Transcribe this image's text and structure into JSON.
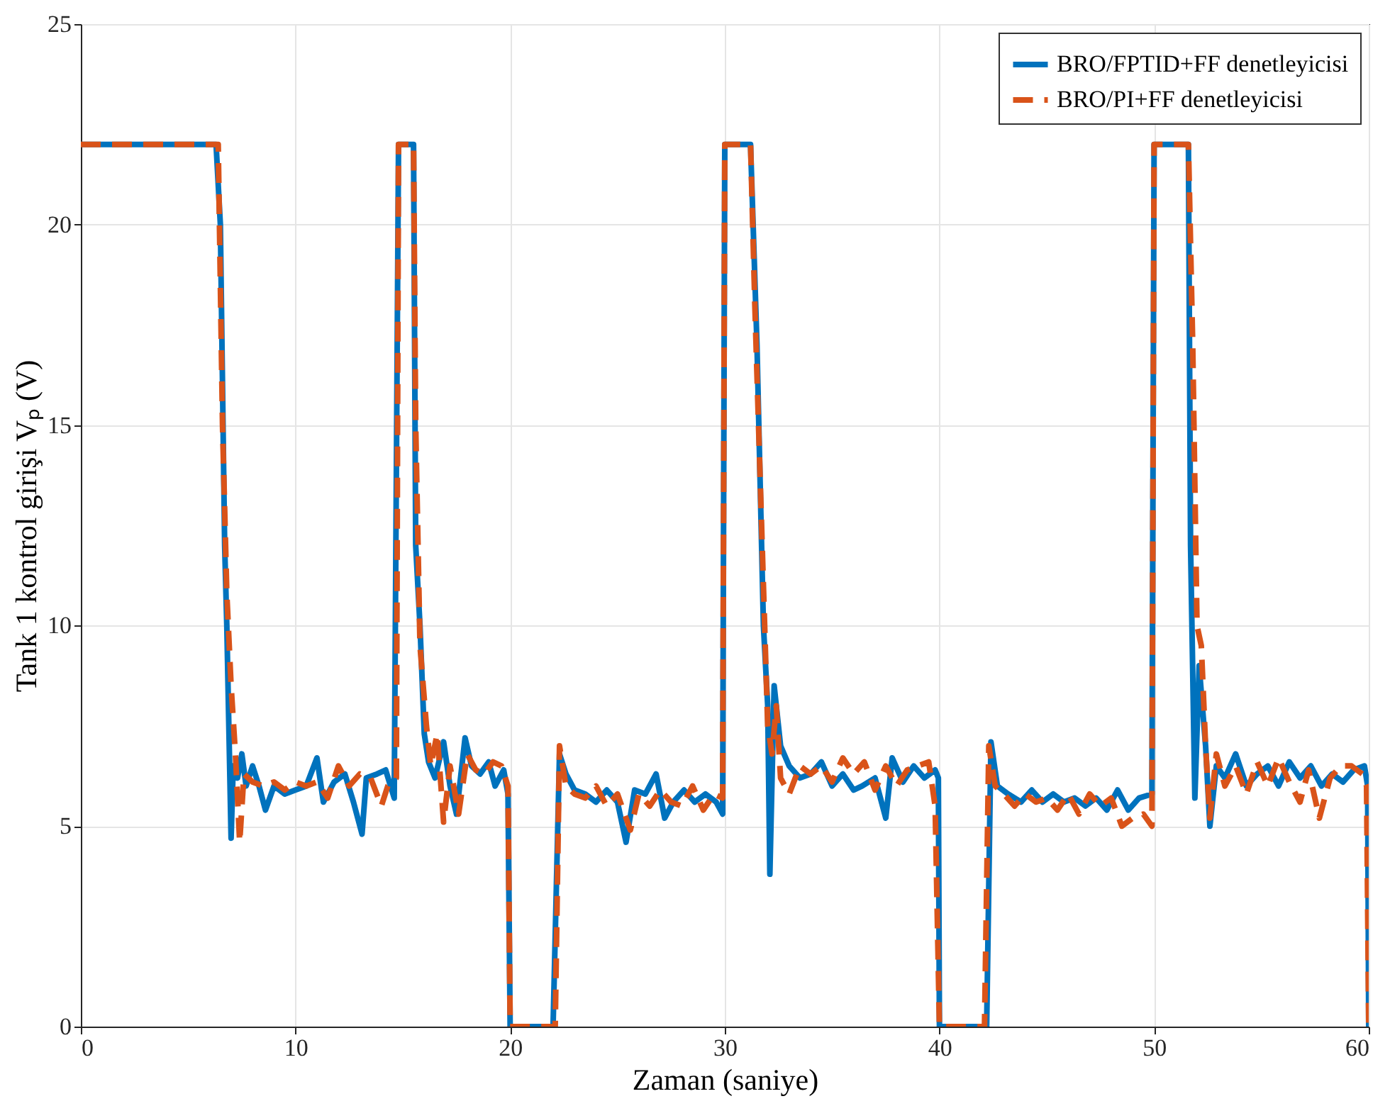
{
  "chart_data": {
    "type": "line",
    "xlabel": "Zaman (saniye)",
    "ylabel": "Tank 1 kontrol girişi Vₚ (V)",
    "xlim": [
      0,
      60
    ],
    "ylim": [
      0,
      25
    ],
    "xticks": [
      0,
      10,
      20,
      30,
      40,
      50,
      60
    ],
    "yticks": [
      0,
      5,
      10,
      15,
      20,
      25
    ],
    "grid": true,
    "legend": "top right",
    "series": [
      {
        "name": "BRO/FPTID+FF denetleyicisi",
        "color": "#0072bd",
        "line_style": "solid",
        "x": [
          0,
          6.3,
          6.5,
          6.7,
          6.8,
          7.0,
          7.1,
          7.3,
          7.5,
          7.7,
          8.0,
          8.3,
          8.6,
          9.0,
          9.5,
          10.0,
          10.5,
          11.0,
          11.3,
          11.8,
          12.3,
          12.7,
          13.1,
          13.3,
          13.8,
          14.2,
          14.6,
          14.8,
          15.5,
          15.6,
          15.8,
          16.0,
          16.2,
          16.5,
          16.9,
          17.2,
          17.5,
          17.9,
          18.2,
          18.6,
          19.0,
          19.3,
          19.7,
          19.9,
          20.0,
          22.0,
          22.3,
          22.6,
          23.0,
          23.5,
          24.0,
          24.5,
          25.0,
          25.4,
          25.8,
          26.3,
          26.8,
          27.2,
          27.6,
          28.1,
          28.6,
          29.1,
          29.6,
          29.9,
          30.0,
          31.2,
          31.5,
          31.8,
          32.0,
          32.1,
          32.3,
          32.6,
          33.0,
          33.5,
          34.0,
          34.5,
          35.0,
          35.5,
          36.0,
          36.4,
          37.0,
          37.5,
          37.8,
          38.3,
          38.8,
          39.3,
          39.8,
          39.95,
          40.0,
          42.2,
          42.4,
          42.7,
          43.2,
          43.8,
          44.3,
          44.8,
          45.3,
          45.8,
          46.3,
          46.8,
          47.3,
          47.8,
          48.3,
          48.8,
          49.3,
          49.9,
          50.0,
          51.6,
          51.7,
          51.9,
          52.1,
          52.4,
          52.6,
          52.9,
          53.3,
          53.8,
          54.3,
          54.8,
          55.3,
          55.8,
          56.3,
          56.8,
          57.3,
          57.8,
          58.3,
          58.8,
          59.3,
          59.8,
          59.95,
          60
        ],
        "values": [
          22,
          22,
          20,
          12,
          10,
          4.7,
          6.5,
          6.2,
          6.8,
          6.0,
          6.5,
          6.0,
          5.4,
          6.0,
          5.8,
          5.9,
          6.0,
          6.7,
          5.6,
          6.1,
          6.3,
          5.6,
          4.8,
          6.2,
          6.3,
          6.4,
          5.7,
          22,
          22,
          12,
          10,
          7.3,
          6.6,
          6.2,
          7.1,
          6.0,
          5.3,
          7.2,
          6.5,
          6.3,
          6.6,
          6.0,
          6.4,
          5.8,
          0,
          0,
          6.8,
          6.3,
          5.9,
          5.8,
          5.6,
          5.9,
          5.6,
          4.6,
          5.9,
          5.8,
          6.3,
          5.2,
          5.6,
          5.9,
          5.6,
          5.8,
          5.6,
          5.3,
          22,
          22,
          17,
          10,
          8.0,
          3.8,
          8.5,
          7.0,
          6.5,
          6.2,
          6.3,
          6.6,
          6.0,
          6.3,
          5.9,
          6.0,
          6.2,
          5.2,
          6.7,
          6.1,
          6.5,
          6.2,
          6.4,
          6.2,
          0,
          0,
          7.1,
          6.0,
          5.8,
          5.6,
          5.9,
          5.6,
          5.8,
          5.6,
          5.7,
          5.5,
          5.7,
          5.4,
          5.9,
          5.4,
          5.7,
          5.8,
          22,
          22,
          12,
          5.7,
          9.0,
          7.0,
          5.0,
          6.5,
          6.2,
          6.8,
          6.0,
          6.3,
          6.5,
          6.0,
          6.6,
          6.2,
          6.5,
          6.0,
          6.3,
          6.1,
          6.4,
          6.5,
          6.0,
          0
        ]
      },
      {
        "name": "BRO/PI+FF denetleyicisi",
        "color": "#d95319",
        "line_style": "dashed",
        "x": [
          0,
          6.4,
          6.6,
          6.8,
          7.0,
          7.2,
          7.4,
          7.6,
          8.0,
          8.5,
          9.0,
          9.5,
          10,
          10.5,
          11,
          11.5,
          12,
          12.5,
          13,
          13.5,
          14,
          14.3,
          14.7,
          14.8,
          15.5,
          15.6,
          15.8,
          16.1,
          16.3,
          16.6,
          16.9,
          17.2,
          17.6,
          18,
          18.4,
          18.8,
          19.2,
          19.6,
          19.9,
          20,
          22.1,
          22.3,
          22.6,
          23,
          23.5,
          24,
          24.5,
          25,
          25.6,
          26,
          26.5,
          27,
          27.5,
          28,
          28.5,
          29,
          29.5,
          29.9,
          30,
          31.2,
          31.4,
          31.8,
          32,
          32.2,
          32.4,
          32.6,
          33,
          33.5,
          34,
          34.5,
          35,
          35.5,
          36,
          36.5,
          37,
          37.5,
          38,
          38.5,
          39,
          39.5,
          39.8,
          40,
          42.1,
          42.3,
          42.6,
          43,
          43.5,
          44,
          44.5,
          45,
          45.5,
          46,
          46.5,
          47,
          47.5,
          48,
          48.5,
          49,
          49.5,
          49.9,
          50,
          51.6,
          51.8,
          52,
          52.2,
          52.4,
          52.6,
          52.9,
          53.3,
          53.8,
          54.3,
          54.8,
          55.3,
          55.8,
          56.3,
          56.8,
          57.2,
          57.7,
          58.2,
          58.7,
          59.2,
          59.7,
          59.9,
          60
        ],
        "values": [
          22,
          22,
          15,
          10.8,
          8.5,
          6.8,
          4.6,
          6.3,
          6.1,
          6.0,
          6.1,
          5.9,
          6.1,
          6.0,
          6.1,
          5.7,
          6.5,
          6.0,
          6.3,
          6.2,
          5.5,
          6.0,
          6.2,
          22,
          22,
          15,
          9.5,
          7.5,
          6.5,
          7.3,
          5.1,
          6.5,
          5.3,
          6.8,
          6.4,
          6.3,
          6.6,
          6.5,
          6.0,
          0,
          0,
          7.0,
          6.0,
          5.8,
          5.7,
          6.0,
          5.5,
          5.8,
          4.9,
          5.8,
          5.5,
          5.9,
          5.6,
          5.5,
          6.0,
          5.4,
          5.8,
          5.7,
          22,
          22,
          18,
          11,
          7.5,
          6.8,
          8.0,
          6.2,
          5.8,
          6.5,
          6.3,
          6.5,
          6.1,
          6.7,
          6.3,
          6.6,
          5.9,
          6.5,
          6.0,
          6.4,
          6.5,
          6.6,
          5.5,
          0,
          0,
          7.0,
          6.0,
          5.8,
          5.5,
          5.8,
          5.6,
          5.7,
          5.4,
          5.8,
          5.3,
          5.8,
          5.5,
          5.7,
          5.0,
          5.2,
          5.3,
          5.0,
          22,
          22,
          17,
          10,
          9.5,
          7,
          5.2,
          6.8,
          6.0,
          6.5,
          5.8,
          6.6,
          6.0,
          6.7,
          6.1,
          5.6,
          6.4,
          5.2,
          6.2,
          6.5,
          6.5,
          6.3,
          6.0,
          0
        ]
      }
    ]
  }
}
